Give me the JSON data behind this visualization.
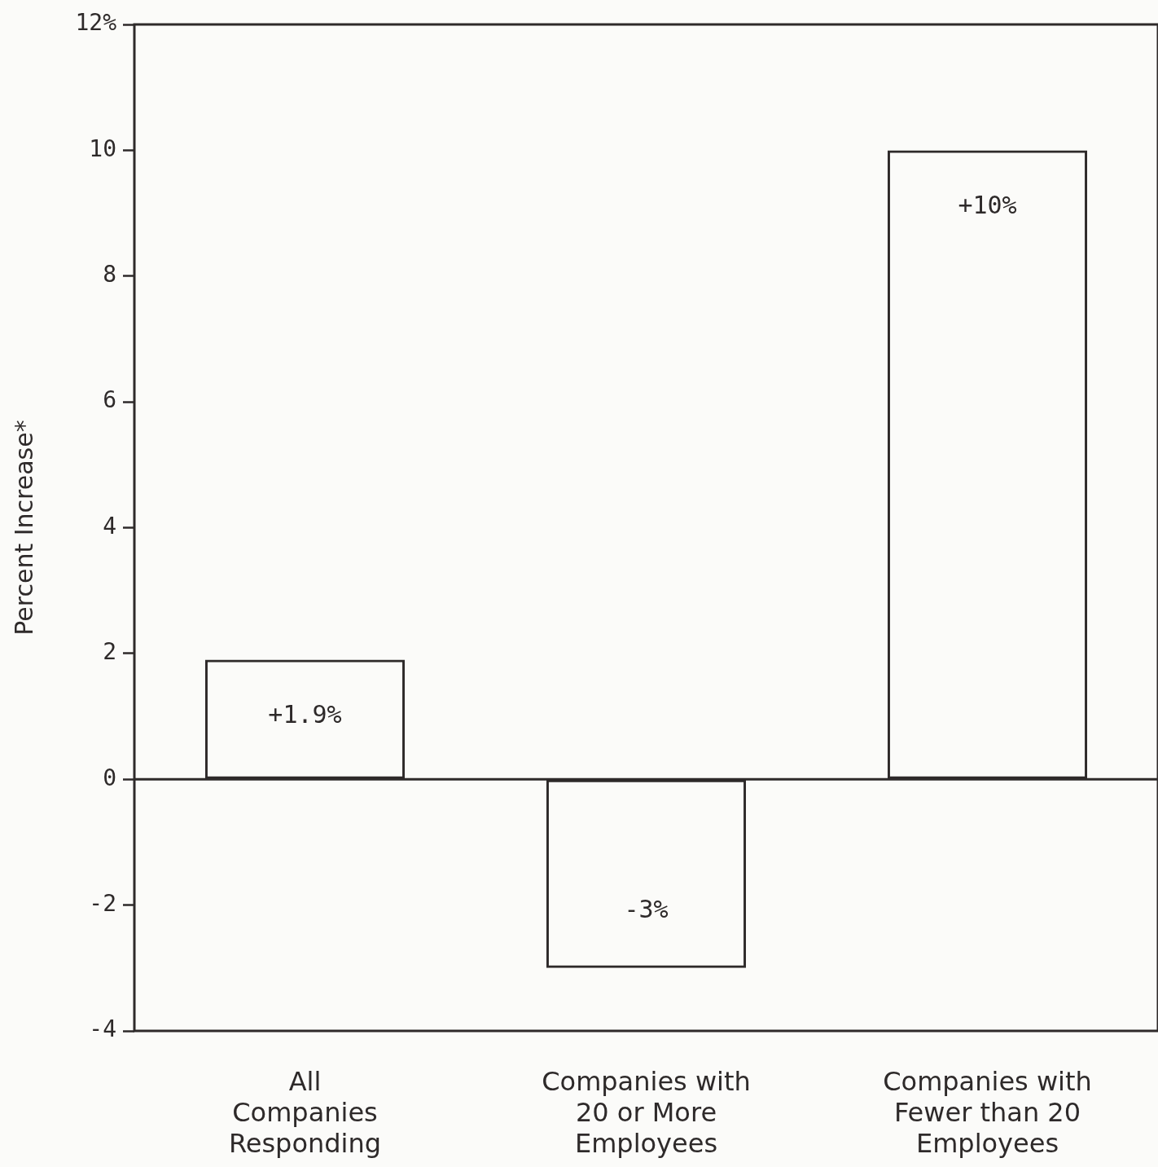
{
  "chart_data": {
    "type": "bar",
    "categories": [
      "All\nCompanies\nResponding",
      "Companies with\n20 or More\nEmployees",
      "Companies with\nFewer than 20\nEmployees"
    ],
    "values": [
      1.9,
      -3,
      10
    ],
    "value_labels": [
      "+1.9%",
      "-3%",
      "+10%"
    ],
    "color": "#2e2a2a",
    "ylabel": "Percent Increase*",
    "ylim": [
      -4,
      12
    ],
    "yticks": [
      -4,
      -2,
      0,
      2,
      4,
      6,
      8,
      10,
      {
        "value": 12,
        "label": "12%"
      }
    ],
    "ref_lines": [
      {
        "axis": "y",
        "value": 0,
        "color": "#2e2a2a"
      }
    ],
    "grid": false,
    "legend": false
  }
}
